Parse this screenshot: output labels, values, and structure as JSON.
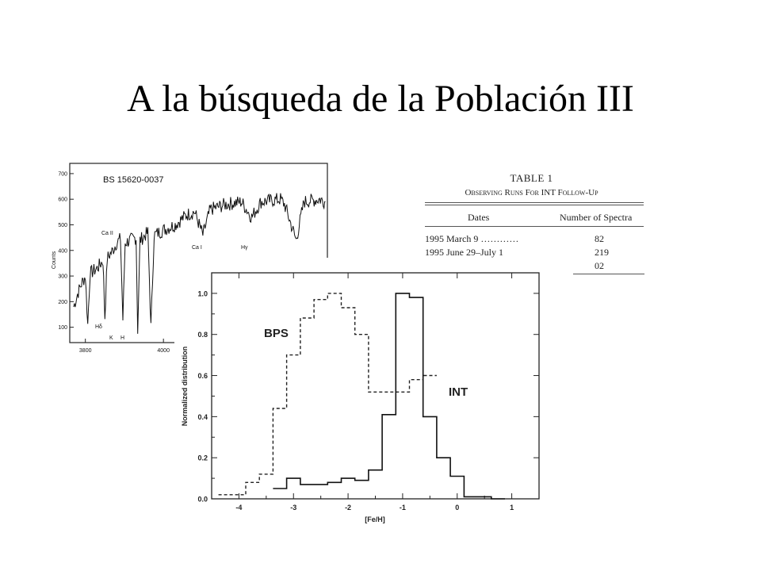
{
  "slide": {
    "title": "A la búsqueda de la Población III"
  },
  "chart_data": [
    {
      "type": "line",
      "title": "BS 15620-0037",
      "xlabel": "",
      "ylabel": "Counts",
      "xlim": [
        3760,
        4420
      ],
      "ylim": [
        40,
        740
      ],
      "xticks": [
        "3800",
        "4000"
      ],
      "yticks": [
        "100",
        "200",
        "300",
        "400",
        "500",
        "600",
        "700"
      ],
      "annotations": [
        "Ca II",
        "Hδ",
        "K",
        "H",
        "Ca I",
        "Hγ"
      ],
      "series": [
        {
          "values": [
            [
              3770,
              180
            ],
            [
              3780,
              230
            ],
            [
              3790,
              270
            ],
            [
              3800,
              300
            ],
            [
              3806,
              110
            ],
            [
              3812,
              310
            ],
            [
              3830,
              330
            ],
            [
              3845,
              360
            ],
            [
              3850,
              140
            ],
            [
              3856,
              370
            ],
            [
              3870,
              400
            ],
            [
              3880,
              430
            ],
            [
              3890,
              445
            ],
            [
              3896,
              130
            ],
            [
              3902,
              430
            ],
            [
              3915,
              440
            ],
            [
              3930,
              450
            ],
            [
              3934,
              90
            ],
            [
              3940,
              440
            ],
            [
              3960,
              470
            ],
            [
              3968,
              100
            ],
            [
              3976,
              460
            ],
            [
              4000,
              480
            ],
            [
              4030,
              500
            ],
            [
              4060,
              540
            ],
            [
              4080,
              550
            ],
            [
              4101,
              460
            ],
            [
              4120,
              560
            ],
            [
              4160,
              580
            ],
            [
              4200,
              590
            ],
            [
              4226,
              530
            ],
            [
              4250,
              590
            ],
            [
              4300,
              600
            ],
            [
              4310,
              580
            ],
            [
              4340,
              440
            ],
            [
              4360,
              590
            ],
            [
              4400,
              600
            ],
            [
              4415,
              590
            ]
          ]
        }
      ]
    },
    {
      "type": "table",
      "title": "TABLE 1",
      "subtitle": "Observing Runs For INT Follow-Up",
      "columns": [
        "Dates",
        "Number of Spectra"
      ],
      "rows": [
        [
          "1995 March 9 …………",
          "82"
        ],
        [
          "1995 June 29–July 1",
          "219"
        ],
        [
          "",
          "02"
        ]
      ]
    },
    {
      "type": "line",
      "xlabel": "[Fe/H]",
      "ylabel": "Normalized distribution",
      "xlim": [
        -4.5,
        1.5
      ],
      "ylim": [
        0,
        1.1
      ],
      "xticks": [
        -4,
        -3,
        -2,
        -1,
        0,
        1
      ],
      "yticks": [
        0.0,
        0.2,
        0.4,
        0.6,
        0.8,
        1.0
      ],
      "series": [
        {
          "name": "BPS",
          "values": [
            [
              -4.25,
              0.02
            ],
            [
              -4.0,
              0.02
            ],
            [
              -3.75,
              0.08
            ],
            [
              -3.5,
              0.12
            ],
            [
              -3.25,
              0.44
            ],
            [
              -3.0,
              0.7
            ],
            [
              -2.75,
              0.88
            ],
            [
              -2.5,
              0.97
            ],
            [
              -2.25,
              1.0
            ],
            [
              -2.0,
              0.93
            ],
            [
              -1.75,
              0.8
            ],
            [
              -1.5,
              0.52
            ],
            [
              -1.25,
              0.52
            ],
            [
              -1.0,
              0.52
            ],
            [
              -0.75,
              0.58
            ],
            [
              -0.5,
              0.6
            ]
          ]
        },
        {
          "name": "INT",
          "values": [
            [
              -3.25,
              0.05
            ],
            [
              -3.0,
              0.1
            ],
            [
              -2.75,
              0.07
            ],
            [
              -2.5,
              0.07
            ],
            [
              -2.25,
              0.08
            ],
            [
              -2.0,
              0.1
            ],
            [
              -1.75,
              0.09
            ],
            [
              -1.5,
              0.14
            ],
            [
              -1.25,
              0.41
            ],
            [
              -1.0,
              1.0
            ],
            [
              -0.75,
              0.98
            ],
            [
              -0.5,
              0.4
            ],
            [
              -0.25,
              0.2
            ],
            [
              0.0,
              0.11
            ],
            [
              0.25,
              0.01
            ],
            [
              0.5,
              0.01
            ],
            [
              0.75,
              0.0
            ]
          ]
        }
      ]
    }
  ]
}
